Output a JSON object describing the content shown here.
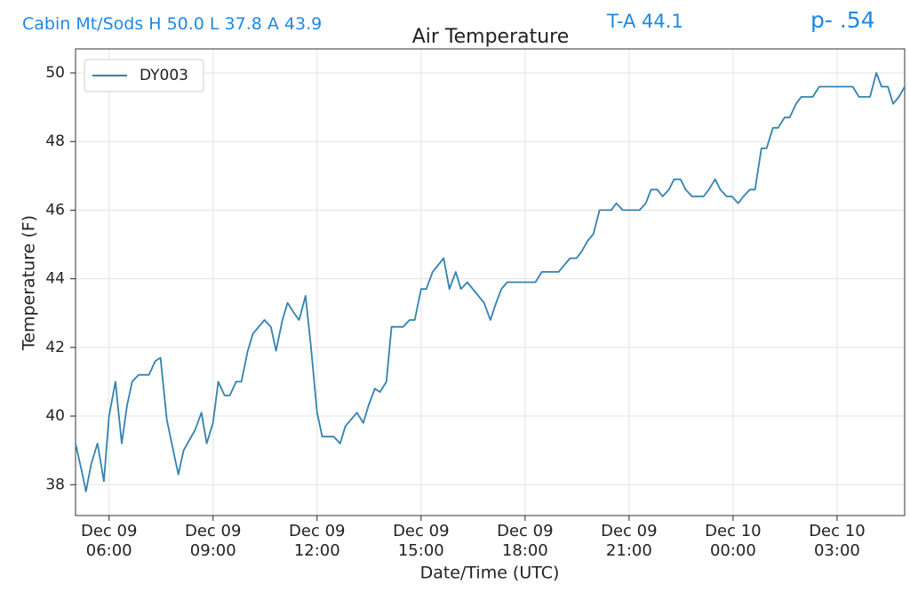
{
  "chart_data": {
    "type": "line",
    "title": "Air Temperature",
    "annotations": [
      "Cabin Mt/Sods H 50.0 L 37.8 A 43.9",
      "T-A 44.1",
      "p- .54"
    ],
    "xlabel": "Date/Time (UTC)",
    "ylabel": "Temperature (F)",
    "x": [
      "Dec 09 05:02",
      "Dec 09 05:14",
      "Dec 09 05:20",
      "Dec 09 05:29",
      "Dec 09 05:40",
      "Dec 09 05:51",
      "Dec 09 06:00",
      "Dec 09 06:11",
      "Dec 09 06:22",
      "Dec 09 06:31",
      "Dec 09 06:40",
      "Dec 09 06:51",
      "Dec 09 07:09",
      "Dec 09 07:20",
      "Dec 09 07:29",
      "Dec 09 07:40",
      "Dec 09 07:51",
      "Dec 09 08:00",
      "Dec 09 08:09",
      "Dec 09 08:29",
      "Dec 09 08:40",
      "Dec 09 08:49",
      "Dec 09 09:00",
      "Dec 09 09:09",
      "Dec 09 09:20",
      "Dec 09 09:29",
      "Dec 09 09:40",
      "Dec 09 09:49",
      "Dec 09 10:00",
      "Dec 09 10:09",
      "Dec 09 10:29",
      "Dec 09 10:40",
      "Dec 09 10:49",
      "Dec 09 11:00",
      "Dec 09 11:09",
      "Dec 09 11:20",
      "Dec 09 11:29",
      "Dec 09 11:40",
      "Dec 09 11:49",
      "Dec 09 12:00",
      "Dec 09 12:09",
      "Dec 09 12:29",
      "Dec 09 12:40",
      "Dec 09 12:49",
      "Dec 09 13:09",
      "Dec 09 13:20",
      "Dec 09 13:29",
      "Dec 09 13:40",
      "Dec 09 13:49",
      "Dec 09 14:00",
      "Dec 09 14:09",
      "Dec 09 14:29",
      "Dec 09 14:40",
      "Dec 09 14:49",
      "Dec 09 15:00",
      "Dec 09 15:09",
      "Dec 09 15:20",
      "Dec 09 15:39",
      "Dec 09 15:49",
      "Dec 09 16:00",
      "Dec 09 16:09",
      "Dec 09 16:20",
      "Dec 09 16:49",
      "Dec 09 17:00",
      "Dec 09 17:10",
      "Dec 09 17:19",
      "Dec 09 17:29",
      "Dec 09 18:18",
      "Dec 09 18:29",
      "Dec 09 18:58",
      "Dec 09 19:18",
      "Dec 09 19:29",
      "Dec 09 19:38",
      "Dec 09 19:48",
      "Dec 09 19:58",
      "Dec 09 20:09",
      "Dec 09 20:29",
      "Dec 09 20:38",
      "Dec 09 20:49",
      "Dec 09 21:18",
      "Dec 09 21:29",
      "Dec 09 21:38",
      "Dec 09 21:49",
      "Dec 09 21:58",
      "Dec 09 22:09",
      "Dec 09 22:18",
      "Dec 09 22:29",
      "Dec 09 22:38",
      "Dec 09 22:49",
      "Dec 09 23:09",
      "Dec 09 23:18",
      "Dec 09 23:29",
      "Dec 09 23:38",
      "Dec 09 23:49",
      "Dec 09 23:58",
      "Dec 10 00:09",
      "Dec 10 00:18",
      "Dec 10 00:29",
      "Dec 10 00:38",
      "Dec 10 00:49",
      "Dec 10 00:58",
      "Dec 10 01:09",
      "Dec 10 01:18",
      "Dec 10 01:29",
      "Dec 10 01:38",
      "Dec 10 01:49",
      "Dec 10 01:58",
      "Dec 10 02:18",
      "Dec 10 02:29",
      "Dec 10 03:27",
      "Dec 10 03:38",
      "Dec 10 03:57",
      "Dec 10 04:08",
      "Dec 10 04:17",
      "Dec 10 04:28",
      "Dec 10 04:37",
      "Dec 10 04:47",
      "Dec 10 04:57"
    ],
    "series": [
      {
        "name": "DY003",
        "color": "#3282b0",
        "values": [
          39.2,
          38.3,
          37.8,
          38.6,
          39.2,
          38.1,
          40.0,
          41.0,
          39.2,
          40.3,
          41.0,
          41.2,
          41.2,
          41.6,
          41.7,
          39.9,
          39.0,
          38.3,
          39.0,
          39.6,
          40.1,
          39.2,
          39.8,
          41.0,
          40.6,
          40.6,
          41.0,
          41.0,
          41.9,
          42.4,
          42.8,
          42.6,
          41.9,
          42.8,
          43.3,
          43.0,
          42.8,
          43.5,
          42.1,
          40.1,
          39.4,
          39.4,
          39.2,
          39.7,
          40.1,
          39.8,
          40.3,
          40.8,
          40.7,
          41.0,
          42.6,
          42.6,
          42.8,
          42.8,
          43.7,
          43.7,
          44.2,
          44.6,
          43.7,
          44.2,
          43.7,
          43.9,
          43.3,
          42.8,
          43.3,
          43.7,
          43.9,
          43.9,
          44.2,
          44.2,
          44.6,
          44.6,
          44.8,
          45.1,
          45.3,
          46.0,
          46.0,
          46.2,
          46.0,
          46.0,
          46.2,
          46.6,
          46.6,
          46.4,
          46.6,
          46.9,
          46.9,
          46.6,
          46.4,
          46.4,
          46.6,
          46.9,
          46.6,
          46.4,
          46.4,
          46.2,
          46.4,
          46.6,
          46.6,
          47.8,
          47.8,
          48.4,
          48.4,
          48.7,
          48.7,
          49.1,
          49.3,
          49.3,
          49.6,
          49.6,
          49.3,
          49.3,
          50.0,
          49.6,
          49.6,
          49.1,
          49.3,
          49.6
        ]
      }
    ],
    "xlim": [
      "Dec 09 05:02",
      "Dec 10 04:57"
    ],
    "xticks": [
      "Dec 09 06:00",
      "Dec 09 09:00",
      "Dec 09 12:00",
      "Dec 09 15:00",
      "Dec 09 18:00",
      "Dec 09 21:00",
      "Dec 10 00:00",
      "Dec 10 03:00"
    ],
    "ylim": [
      37.1,
      50.7
    ],
    "yticks": [
      38,
      40,
      42,
      44,
      46,
      48,
      50
    ],
    "grid": true,
    "legend": "upper left"
  }
}
